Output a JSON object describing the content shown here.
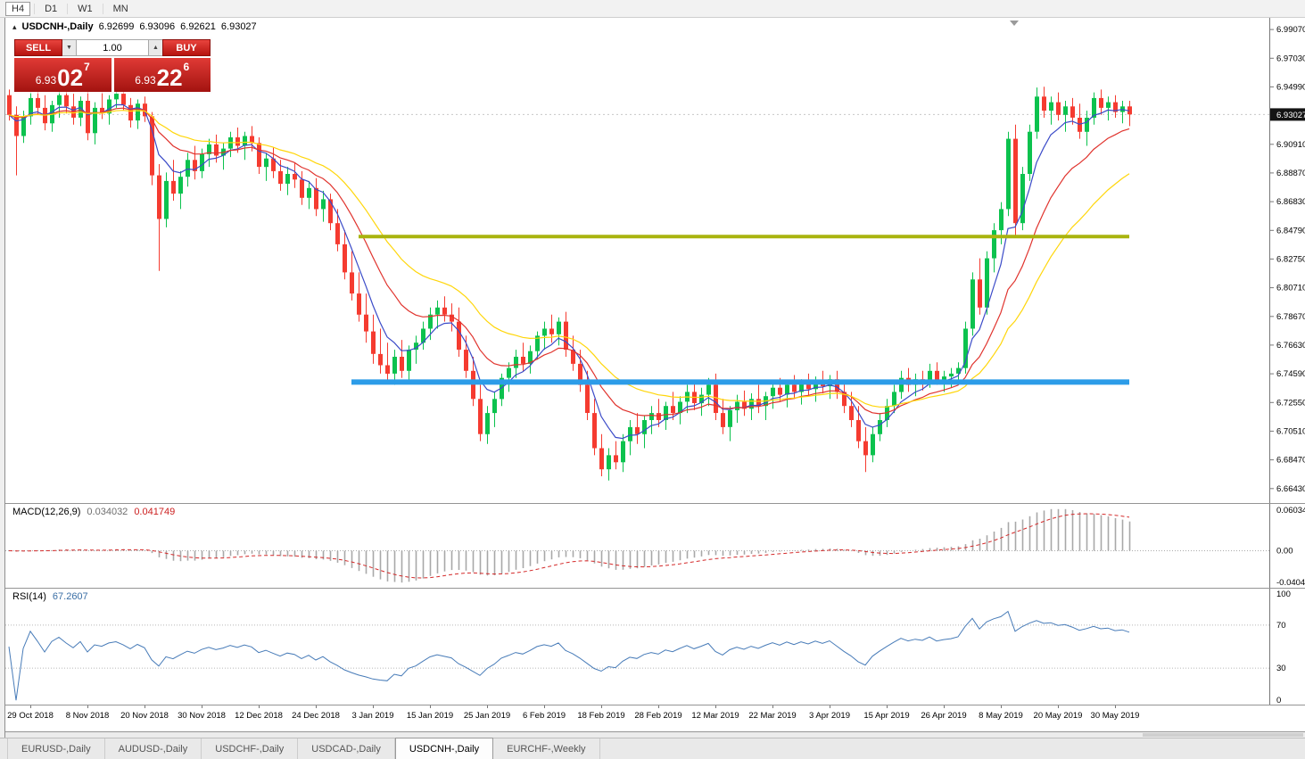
{
  "icons": {
    "collapse": "▴",
    "spin_up": "▲",
    "spin_down": "▼"
  },
  "toolbar": {
    "timeframes": [
      {
        "label": "H4",
        "active": true
      },
      {
        "label": "D1",
        "active": false
      },
      {
        "label": "W1",
        "active": false
      },
      {
        "label": "MN",
        "active": false
      }
    ]
  },
  "symbol_header": {
    "symbol": "USDCNH-,Daily",
    "o": "6.92699",
    "h": "6.93096",
    "l": "6.92621",
    "c": "6.93027"
  },
  "one_click": {
    "sell_label": "SELL",
    "buy_label": "BUY",
    "volume": "1.00",
    "sell_price": {
      "prefix": "6.93",
      "big": "02",
      "sup": "7"
    },
    "buy_price": {
      "prefix": "6.93",
      "big": "22",
      "sup": "6"
    }
  },
  "price_axis": {
    "labels": [
      6.9907,
      6.9703,
      6.9499,
      6.9091,
      6.8887,
      6.8683,
      6.8479,
      6.8275,
      6.8071,
      6.7867,
      6.7663,
      6.7459,
      6.7255,
      6.7051,
      6.6847,
      6.6643
    ],
    "current": "6.93027",
    "current_value": 6.93027
  },
  "chart_data": {
    "type": "candlestick",
    "title": "USDCNH-,Daily",
    "price_range": [
      6.654,
      6.999
    ],
    "up_color": "#0cc24e",
    "down_color": "#f53b30",
    "bid_line": 6.93027,
    "first_label_bar": 3,
    "bars_per_label": 8,
    "x_labels": [
      "29 Oct 2018",
      "8 Nov 2018",
      "20 Nov 2018",
      "30 Nov 2018",
      "12 Dec 2018",
      "24 Dec 2018",
      "3 Jan 2019",
      "15 Jan 2019",
      "25 Jan 2019",
      "6 Feb 2019",
      "18 Feb 2019",
      "28 Feb 2019",
      "12 Mar 2019",
      "22 Mar 2019",
      "3 Apr 2019",
      "15 Apr 2019",
      "26 Apr 2019",
      "8 May 2019",
      "20 May 2019",
      "30 May 2019"
    ],
    "moving_averages": [
      {
        "type": "ema",
        "period": 6,
        "color": "#3b4bc8"
      },
      {
        "type": "ema",
        "period": 14,
        "color": "#e0332d"
      },
      {
        "type": "ema",
        "period": 26,
        "color": "#ffd60a"
      }
    ],
    "hlines": [
      {
        "name": "resistance-hline-olive",
        "price": 6.8435,
        "color": "#a9b40e",
        "width": 4,
        "from_bar": 49,
        "to_bar": 157
      },
      {
        "name": "support-hline-blue",
        "price": 6.74,
        "color": "#2c9ce8",
        "width": 6,
        "from_bar": 48,
        "to_bar": 157
      }
    ],
    "indicators": {
      "macd": {
        "title": "MACD(12,26,9)",
        "fast": 12,
        "slow": 26,
        "signal": 9,
        "value_main": "0.034032",
        "value_signal": "0.041749",
        "axis_labels": [
          "0.060342",
          "0.00",
          "-0.040441"
        ],
        "histogram_color": "#a8a8a8",
        "signal_color": "#d42a2a"
      },
      "rsi": {
        "title": "RSI(14)",
        "period": 14,
        "value": "67.2607",
        "levels": [
          70,
          30
        ],
        "axis_labels": [
          "100",
          "70",
          "30",
          "0"
        ],
        "line_color": "#477bb8"
      }
    },
    "ohlc": [
      [
        6.944,
        6.948,
        6.926,
        6.93
      ],
      [
        6.93,
        6.936,
        6.887,
        6.915
      ],
      [
        6.915,
        6.933,
        6.91,
        6.929
      ],
      [
        6.929,
        6.946,
        6.923,
        6.942
      ],
      [
        6.942,
        6.948,
        6.93,
        6.935
      ],
      [
        6.935,
        6.944,
        6.919,
        6.924
      ],
      [
        6.924,
        6.94,
        6.918,
        6.937
      ],
      [
        6.937,
        6.947,
        6.928,
        6.944
      ],
      [
        6.944,
        6.948,
        6.931,
        6.936
      ],
      [
        6.936,
        6.945,
        6.923,
        6.928
      ],
      [
        6.928,
        6.943,
        6.922,
        6.94
      ],
      [
        6.94,
        6.947,
        6.912,
        6.917
      ],
      [
        6.917,
        6.939,
        6.909,
        6.935
      ],
      [
        6.935,
        6.946,
        6.927,
        6.931
      ],
      [
        6.931,
        6.944,
        6.923,
        6.941
      ],
      [
        6.941,
        6.948,
        6.935,
        6.945
      ],
      [
        6.945,
        6.948,
        6.933,
        6.937
      ],
      [
        6.937,
        6.942,
        6.921,
        6.926
      ],
      [
        6.926,
        6.941,
        6.92,
        6.938
      ],
      [
        6.938,
        6.943,
        6.925,
        6.929
      ],
      [
        6.929,
        6.932,
        6.88,
        6.887
      ],
      [
        6.887,
        6.895,
        6.819,
        6.856
      ],
      [
        6.856,
        6.889,
        6.85,
        6.883
      ],
      [
        6.883,
        6.898,
        6.869,
        6.874
      ],
      [
        6.874,
        6.89,
        6.863,
        6.886
      ],
      [
        6.886,
        6.903,
        6.879,
        6.898
      ],
      [
        6.898,
        6.908,
        6.884,
        6.89
      ],
      [
        6.89,
        6.906,
        6.885,
        6.902
      ],
      [
        6.902,
        6.913,
        6.893,
        6.909
      ],
      [
        6.909,
        6.916,
        6.896,
        6.901
      ],
      [
        6.901,
        6.91,
        6.891,
        6.906
      ],
      [
        6.906,
        6.918,
        6.9,
        6.914
      ],
      [
        6.914,
        6.921,
        6.903,
        6.908
      ],
      [
        6.908,
        6.918,
        6.898,
        6.915
      ],
      [
        6.915,
        6.922,
        6.904,
        6.91
      ],
      [
        6.91,
        6.914,
        6.888,
        6.893
      ],
      [
        6.893,
        6.903,
        6.883,
        6.899
      ],
      [
        6.899,
        6.907,
        6.885,
        6.89
      ],
      [
        6.89,
        6.898,
        6.876,
        6.881
      ],
      [
        6.881,
        6.893,
        6.873,
        6.888
      ],
      [
        6.888,
        6.896,
        6.878,
        6.884
      ],
      [
        6.884,
        6.89,
        6.866,
        6.871
      ],
      [
        6.871,
        6.883,
        6.863,
        6.878
      ],
      [
        6.878,
        6.885,
        6.858,
        6.863
      ],
      [
        6.863,
        6.876,
        6.854,
        6.87
      ],
      [
        6.87,
        6.874,
        6.848,
        6.853
      ],
      [
        6.853,
        6.863,
        6.833,
        6.838
      ],
      [
        6.838,
        6.848,
        6.813,
        6.818
      ],
      [
        6.818,
        6.833,
        6.798,
        6.803
      ],
      [
        6.803,
        6.818,
        6.783,
        6.788
      ],
      [
        6.788,
        6.803,
        6.768,
        6.776
      ],
      [
        6.776,
        6.788,
        6.753,
        6.76
      ],
      [
        6.76,
        6.778,
        6.746,
        6.752
      ],
      [
        6.752,
        6.768,
        6.74,
        6.746
      ],
      [
        6.746,
        6.763,
        6.738,
        6.758
      ],
      [
        6.758,
        6.77,
        6.743,
        6.748
      ],
      [
        6.748,
        6.766,
        6.741,
        6.763
      ],
      [
        6.763,
        6.773,
        6.753,
        6.768
      ],
      [
        6.768,
        6.783,
        6.763,
        6.778
      ],
      [
        6.778,
        6.793,
        6.77,
        6.788
      ],
      [
        6.788,
        6.798,
        6.778,
        6.793
      ],
      [
        6.793,
        6.801,
        6.783,
        6.788
      ],
      [
        6.788,
        6.796,
        6.776,
        6.783
      ],
      [
        6.783,
        6.793,
        6.758,
        6.763
      ],
      [
        6.763,
        6.773,
        6.743,
        6.748
      ],
      [
        6.748,
        6.758,
        6.723,
        6.728
      ],
      [
        6.728,
        6.738,
        6.698,
        6.703
      ],
      [
        6.703,
        6.723,
        6.696,
        6.718
      ],
      [
        6.718,
        6.733,
        6.708,
        6.728
      ],
      [
        6.728,
        6.746,
        6.723,
        6.743
      ],
      [
        6.743,
        6.754,
        6.733,
        6.75
      ],
      [
        6.75,
        6.763,
        6.743,
        6.758
      ],
      [
        6.758,
        6.768,
        6.748,
        6.753
      ],
      [
        6.753,
        6.766,
        6.746,
        6.762
      ],
      [
        6.762,
        6.776,
        6.756,
        6.773
      ],
      [
        6.773,
        6.783,
        6.763,
        6.778
      ],
      [
        6.778,
        6.788,
        6.768,
        6.774
      ],
      [
        6.774,
        6.786,
        6.766,
        6.783
      ],
      [
        6.783,
        6.79,
        6.758,
        6.763
      ],
      [
        6.763,
        6.773,
        6.748,
        6.753
      ],
      [
        6.753,
        6.763,
        6.733,
        6.738
      ],
      [
        6.738,
        6.748,
        6.713,
        6.718
      ],
      [
        6.718,
        6.728,
        6.688,
        6.693
      ],
      [
        6.693,
        6.703,
        6.673,
        6.678
      ],
      [
        6.678,
        6.693,
        6.67,
        6.688
      ],
      [
        6.688,
        6.698,
        6.678,
        6.683
      ],
      [
        6.683,
        6.703,
        6.676,
        6.698
      ],
      [
        6.698,
        6.713,
        6.688,
        6.708
      ],
      [
        6.708,
        6.718,
        6.696,
        6.703
      ],
      [
        6.703,
        6.716,
        6.693,
        6.713
      ],
      [
        6.713,
        6.723,
        6.703,
        6.718
      ],
      [
        6.718,
        6.728,
        6.708,
        6.713
      ],
      [
        6.713,
        6.726,
        6.706,
        6.723
      ],
      [
        6.723,
        6.733,
        6.713,
        6.718
      ],
      [
        6.718,
        6.73,
        6.71,
        6.726
      ],
      [
        6.726,
        6.738,
        6.718,
        6.733
      ],
      [
        6.733,
        6.74,
        6.72,
        6.725
      ],
      [
        6.725,
        6.736,
        6.716,
        6.731
      ],
      [
        6.731,
        6.743,
        6.723,
        6.738
      ],
      [
        6.738,
        6.746,
        6.713,
        6.718
      ],
      [
        6.718,
        6.728,
        6.703,
        6.708
      ],
      [
        6.708,
        6.723,
        6.698,
        6.72
      ],
      [
        6.72,
        6.731,
        6.711,
        6.726
      ],
      [
        6.726,
        6.734,
        6.716,
        6.721
      ],
      [
        6.721,
        6.732,
        6.713,
        6.728
      ],
      [
        6.728,
        6.738,
        6.718,
        6.723
      ],
      [
        6.723,
        6.733,
        6.713,
        6.73
      ],
      [
        6.73,
        6.74,
        6.721,
        6.736
      ],
      [
        6.736,
        6.743,
        6.726,
        6.731
      ],
      [
        6.731,
        6.741,
        6.722,
        6.738
      ],
      [
        6.738,
        6.745,
        6.728,
        6.733
      ],
      [
        6.733,
        6.742,
        6.724,
        6.739
      ],
      [
        6.739,
        6.746,
        6.73,
        6.735
      ],
      [
        6.735,
        6.744,
        6.726,
        6.741
      ],
      [
        6.741,
        6.748,
        6.732,
        6.737
      ],
      [
        6.737,
        6.745,
        6.728,
        6.742
      ],
      [
        6.742,
        6.748,
        6.728,
        6.733
      ],
      [
        6.733,
        6.74,
        6.718,
        6.723
      ],
      [
        6.723,
        6.733,
        6.708,
        6.713
      ],
      [
        6.713,
        6.723,
        6.693,
        6.698
      ],
      [
        6.698,
        6.708,
        6.676,
        6.688
      ],
      [
        6.688,
        6.708,
        6.683,
        6.703
      ],
      [
        6.703,
        6.718,
        6.698,
        6.713
      ],
      [
        6.713,
        6.728,
        6.708,
        6.723
      ],
      [
        6.723,
        6.738,
        6.718,
        6.733
      ],
      [
        6.733,
        6.748,
        6.728,
        6.743
      ],
      [
        6.743,
        6.75,
        6.733,
        6.738
      ],
      [
        6.738,
        6.746,
        6.73,
        6.742
      ],
      [
        6.742,
        6.748,
        6.734,
        6.74
      ],
      [
        6.74,
        6.753,
        6.736,
        6.748
      ],
      [
        6.748,
        6.754,
        6.738,
        6.741
      ],
      [
        6.741,
        6.748,
        6.733,
        6.744
      ],
      [
        6.744,
        6.75,
        6.736,
        6.746
      ],
      [
        6.746,
        6.754,
        6.74,
        6.75
      ],
      [
        6.75,
        6.783,
        6.746,
        6.778
      ],
      [
        6.778,
        6.818,
        6.773,
        6.813
      ],
      [
        6.813,
        6.828,
        6.788,
        6.793
      ],
      [
        6.793,
        6.833,
        6.788,
        6.828
      ],
      [
        6.828,
        6.853,
        6.818,
        6.848
      ],
      [
        6.848,
        6.868,
        6.838,
        6.863
      ],
      [
        6.863,
        6.918,
        6.858,
        6.913
      ],
      [
        6.913,
        6.923,
        6.843,
        6.853
      ],
      [
        6.853,
        6.893,
        6.848,
        6.888
      ],
      [
        6.888,
        6.923,
        6.883,
        6.918
      ],
      [
        6.918,
        6.9495,
        6.913,
        6.943
      ],
      [
        6.943,
        6.95,
        6.928,
        6.933
      ],
      [
        6.933,
        6.943,
        6.923,
        6.939
      ],
      [
        6.939,
        6.946,
        6.926,
        6.93
      ],
      [
        6.93,
        6.94,
        6.918,
        6.936
      ],
      [
        6.936,
        6.942,
        6.923,
        6.928
      ],
      [
        6.928,
        6.938,
        6.913,
        6.918
      ],
      [
        6.918,
        6.933,
        6.908,
        6.928
      ],
      [
        6.928,
        6.946,
        6.923,
        6.942
      ],
      [
        6.942,
        6.948,
        6.93,
        6.935
      ],
      [
        6.935,
        6.943,
        6.926,
        6.939
      ],
      [
        6.939,
        6.944,
        6.928,
        6.932
      ],
      [
        6.932,
        6.94,
        6.924,
        6.936
      ],
      [
        6.936,
        6.94,
        6.922,
        6.93027
      ]
    ]
  },
  "tabs": [
    {
      "label": "EURUSD-,Daily",
      "active": false
    },
    {
      "label": "AUDUSD-,Daily",
      "active": false
    },
    {
      "label": "USDCHF-,Daily",
      "active": false
    },
    {
      "label": "USDCAD-,Daily",
      "active": false
    },
    {
      "label": "USDCNH-,Daily",
      "active": true
    },
    {
      "label": "EURCHF-,Weekly",
      "active": false
    }
  ]
}
